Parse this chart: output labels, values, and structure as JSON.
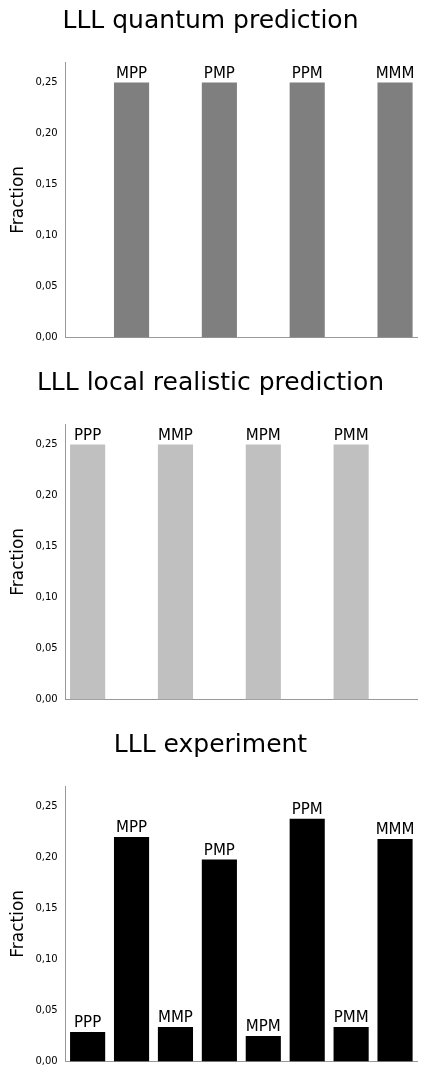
{
  "chart_data": [
    {
      "type": "bar",
      "title": "LLL quantum prediction",
      "ylabel": "Fraction",
      "categories": [
        null,
        null,
        null,
        null,
        null,
        null,
        null,
        null
      ],
      "values": [
        0,
        0.25,
        0,
        0.25,
        0,
        0.25,
        0,
        0.25
      ],
      "color": "#7f7f7f",
      "value_labels": [
        null,
        "MPP",
        null,
        "PMP",
        null,
        "PPM",
        null,
        "MMM"
      ],
      "ylim": [
        0,
        0.27
      ],
      "yticks": [
        {
          "value": 0,
          "label": "0,00"
        },
        {
          "value": 0.05,
          "label": "0,05"
        },
        {
          "value": 0.1,
          "label": "0,10"
        },
        {
          "value": 0.15,
          "label": "0,15"
        },
        {
          "value": 0.2,
          "label": "0,20"
        },
        {
          "value": 0.25,
          "label": "0,25"
        }
      ],
      "grid": false,
      "legend": false
    },
    {
      "type": "bar",
      "title": "LLL local realistic prediction",
      "ylabel": "Fraction",
      "categories": [
        null,
        null,
        null,
        null,
        null,
        null,
        null,
        null
      ],
      "values": [
        0.25,
        0,
        0.25,
        0,
        0.25,
        0,
        0.25,
        0
      ],
      "color": "#c0c0c0",
      "value_labels": [
        "PPP",
        null,
        "MMP",
        null,
        "MPM",
        null,
        "PMM",
        null
      ],
      "ylim": [
        0,
        0.27
      ],
      "yticks": [
        {
          "value": 0,
          "label": "0,00"
        },
        {
          "value": 0.05,
          "label": "0,05"
        },
        {
          "value": 0.1,
          "label": "0,10"
        },
        {
          "value": 0.15,
          "label": "0,15"
        },
        {
          "value": 0.2,
          "label": "0,20"
        },
        {
          "value": 0.25,
          "label": "0,25"
        }
      ],
      "grid": false,
      "legend": false
    },
    {
      "type": "bar",
      "title": "LLL experiment",
      "ylabel": "Fraction",
      "categories": [
        null,
        null,
        null,
        null,
        null,
        null,
        null,
        null
      ],
      "values": [
        0.029,
        0.22,
        0.034,
        0.198,
        0.025,
        0.238,
        0.034,
        0.218
      ],
      "color": "#000000",
      "value_labels": [
        "PPP",
        "MPP",
        "MMP",
        "PMP",
        "MPM",
        "PPM",
        "PMM",
        "MMM"
      ],
      "ylim": [
        0,
        0.27
      ],
      "yticks": [
        {
          "value": 0,
          "label": "0,00"
        },
        {
          "value": 0.05,
          "label": "0,05"
        },
        {
          "value": 0.1,
          "label": "0,10"
        },
        {
          "value": 0.15,
          "label": "0,15"
        },
        {
          "value": 0.2,
          "label": "0,20"
        },
        {
          "value": 0.25,
          "label": "0,25"
        }
      ],
      "grid": false,
      "legend": false
    }
  ]
}
